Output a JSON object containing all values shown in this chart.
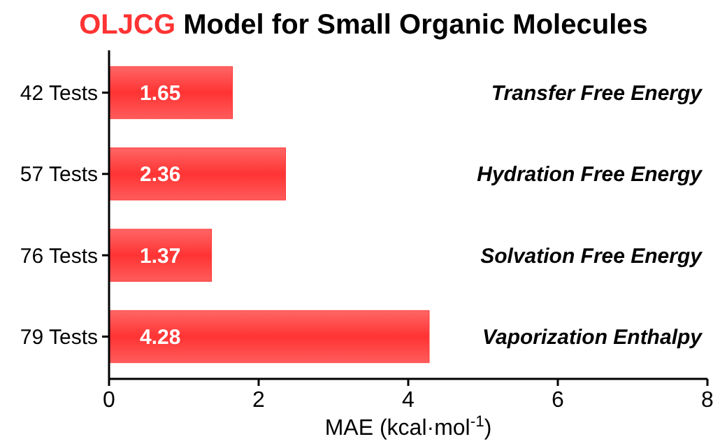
{
  "chart_data": {
    "type": "bar",
    "orientation": "horizontal",
    "title": "OLJCG Model for Small Organic Molecules",
    "xlabel": "MAE (kcal·mol$^{-1}$)",
    "categories": [
      "42 Tests",
      "57 Tests",
      "76 Tests",
      "79 Tests"
    ],
    "values": [
      1.65,
      2.36,
      1.37,
      4.28
    ],
    "color": "#ff3333",
    "data_labels": true,
    "xlim": [
      0,
      8
    ],
    "xticks": [
      0,
      2,
      4,
      6,
      8
    ],
    "grid": false,
    "annotations": [
      "Transfer Free Energy",
      "Hydration Free Energy",
      "Solvation Free Energy",
      "Vaporization Enthalpy"
    ]
  }
}
